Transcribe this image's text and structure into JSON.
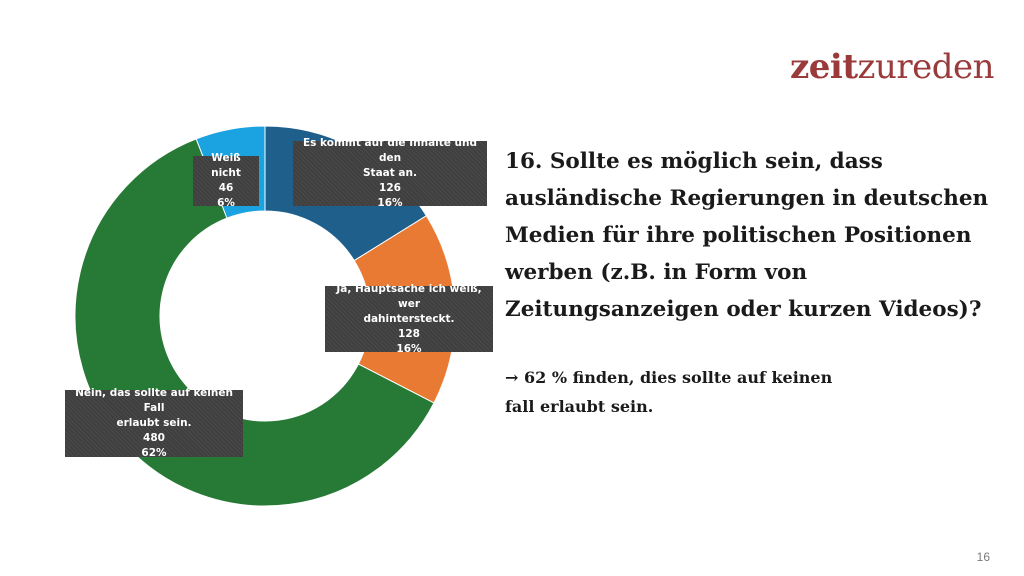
{
  "logo": {
    "part1": "zeit",
    "part2": "zureden"
  },
  "question": {
    "lines": [
      "16. Sollte es möglich sein, dass",
      "ausländische Regierungen in deutschen",
      "Medien für ihre politischen Positionen",
      "werben (z.B. in Form von",
      "Zeitungsanzeigen oder kurzen Videos)?"
    ]
  },
  "finding": {
    "lines": [
      "→ 62 % finden, dies sollte auf keinen",
      "fall erlaubt sein."
    ]
  },
  "page_number": "16",
  "chart_data": {
    "type": "pie",
    "donut": true,
    "title": "",
    "slices": [
      {
        "label_lines": [
          "Es kommt auf die Inhalte und den",
          "Staat an."
        ],
        "count": "126",
        "percent": "16%",
        "value": 126,
        "color": "#1f5f8b"
      },
      {
        "label_lines": [
          "Ja, Hauptsache ich weiß, wer",
          "dahintersteckt."
        ],
        "count": "128",
        "percent": "16%",
        "value": 128,
        "color": "#e87a34"
      },
      {
        "label_lines": [
          "Nein, das sollte auf keinen Fall",
          "erlaubt sein."
        ],
        "count": "480",
        "percent": "62%",
        "value": 480,
        "color": "#267a35"
      },
      {
        "label_lines": [
          "Weiß nicht"
        ],
        "count": "46",
        "percent": "6%",
        "value": 46,
        "color": "#1aa3e0"
      }
    ]
  }
}
